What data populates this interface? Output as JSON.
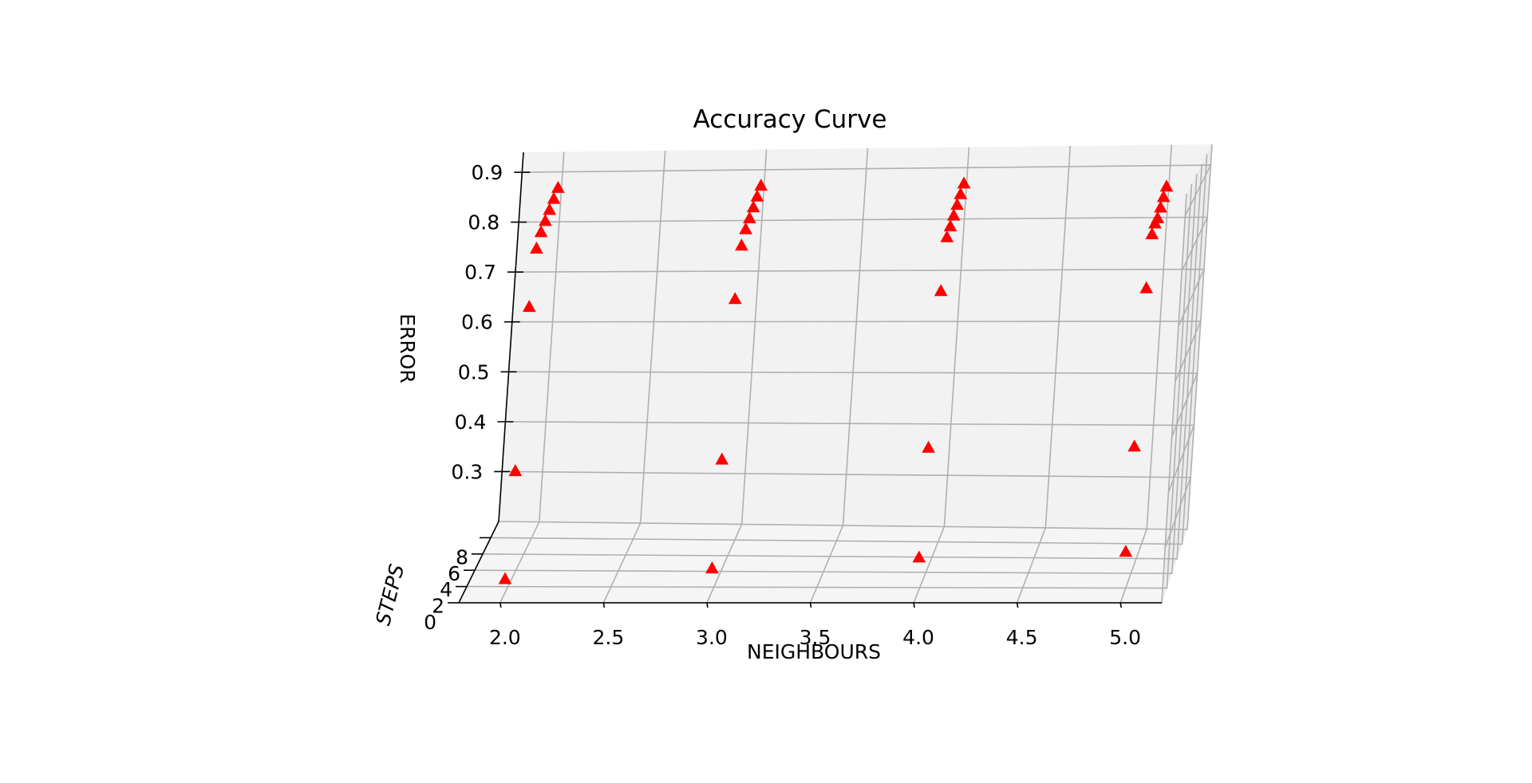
{
  "chart_data": {
    "type": "scatter",
    "projection": "3d",
    "title": "Accuracy Curve",
    "xlabel": "NEIGHBOURS",
    "ylabel": "STEPS",
    "zlabel": "ERROR",
    "xlim": [
      1.8,
      5.2
    ],
    "ylim": [
      0,
      10
    ],
    "zlim": [
      0.2,
      0.94
    ],
    "xticks": [
      "2.0",
      "2.5",
      "3.0",
      "3.5",
      "4.0",
      "4.5",
      "5.0"
    ],
    "yticks": [
      "0",
      "2",
      "4",
      "6",
      "8"
    ],
    "zticks": [
      "0.3",
      "0.4",
      "0.5",
      "0.6",
      "0.7",
      "0.8",
      "0.9"
    ],
    "grid": true,
    "marker": "triangle",
    "color": "#ff0000",
    "points": [
      {
        "x": 2,
        "y": 1,
        "z": 0.23
      },
      {
        "x": 2,
        "y": 2,
        "z": 0.42
      },
      {
        "x": 2,
        "y": 3,
        "z": 0.72
      },
      {
        "x": 2,
        "y": 4,
        "z": 0.82
      },
      {
        "x": 2,
        "y": 5,
        "z": 0.84
      },
      {
        "x": 2,
        "y": 6,
        "z": 0.85
      },
      {
        "x": 2,
        "y": 7,
        "z": 0.86
      },
      {
        "x": 2,
        "y": 8,
        "z": 0.87
      },
      {
        "x": 2,
        "y": 9,
        "z": 0.88
      },
      {
        "x": 3,
        "y": 1,
        "z": 0.25
      },
      {
        "x": 3,
        "y": 2,
        "z": 0.44
      },
      {
        "x": 3,
        "y": 3,
        "z": 0.73
      },
      {
        "x": 3,
        "y": 4,
        "z": 0.82
      },
      {
        "x": 3,
        "y": 5,
        "z": 0.84
      },
      {
        "x": 3,
        "y": 6,
        "z": 0.85
      },
      {
        "x": 3,
        "y": 7,
        "z": 0.86
      },
      {
        "x": 3,
        "y": 8,
        "z": 0.87
      },
      {
        "x": 3,
        "y": 9,
        "z": 0.88
      },
      {
        "x": 4,
        "y": 1,
        "z": 0.27
      },
      {
        "x": 4,
        "y": 2,
        "z": 0.46
      },
      {
        "x": 4,
        "y": 3,
        "z": 0.74
      },
      {
        "x": 4,
        "y": 4,
        "z": 0.83
      },
      {
        "x": 4,
        "y": 5,
        "z": 0.84
      },
      {
        "x": 4,
        "y": 6,
        "z": 0.85
      },
      {
        "x": 4,
        "y": 7,
        "z": 0.86
      },
      {
        "x": 4,
        "y": 8,
        "z": 0.87
      },
      {
        "x": 4,
        "y": 9,
        "z": 0.88
      },
      {
        "x": 5,
        "y": 1,
        "z": 0.28
      },
      {
        "x": 5,
        "y": 2,
        "z": 0.46
      },
      {
        "x": 5,
        "y": 3,
        "z": 0.74
      },
      {
        "x": 5,
        "y": 4,
        "z": 0.83
      },
      {
        "x": 5,
        "y": 5,
        "z": 0.84
      },
      {
        "x": 5,
        "y": 6,
        "z": 0.84
      },
      {
        "x": 5,
        "y": 7,
        "z": 0.85
      },
      {
        "x": 5,
        "y": 8,
        "z": 0.86
      },
      {
        "x": 5,
        "y": 9,
        "z": 0.87
      }
    ]
  }
}
